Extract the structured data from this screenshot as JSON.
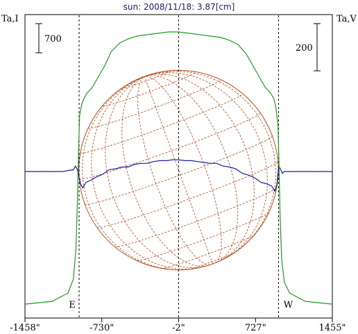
{
  "chart_data": {
    "type": "line",
    "title": "sun: 2008/11/18: 3.87[cm]",
    "left_axis_label": "Ta,I",
    "right_axis_label": "Ta,V",
    "left_scale_bar": "700",
    "right_scale_bar": "200",
    "x_tick_labels": [
      "-1458\"",
      "-730\"",
      "-2\"",
      "727\"",
      "1455\""
    ],
    "x_ticks": [
      -1458,
      -730,
      -2,
      727,
      1455
    ],
    "xlim": [
      -1458,
      1455
    ],
    "limb_markers": {
      "east": "E",
      "west": "W",
      "east_x": -945,
      "west_x": 945
    },
    "center_line_x": -2,
    "grid": false,
    "series": [
      {
        "name": "Ta,I",
        "color": "#1f9a1f",
        "x": [
          -1458,
          -1200,
          -1050,
          -1000,
          -975,
          -960,
          -950,
          -940,
          -920,
          -900,
          -870,
          -820,
          -760,
          -700,
          -640,
          -560,
          -480,
          -400,
          -300,
          -200,
          -100,
          0,
          100,
          200,
          300,
          400,
          480,
          560,
          640,
          700,
          760,
          820,
          870,
          900,
          920,
          940,
          950,
          960,
          975,
          1000,
          1050,
          1200,
          1455
        ],
        "y": [
          0.02,
          0.03,
          0.06,
          0.11,
          0.22,
          0.4,
          0.58,
          0.7,
          0.74,
          0.76,
          0.78,
          0.8,
          0.84,
          0.88,
          0.93,
          0.96,
          0.975,
          0.985,
          0.99,
          0.995,
          1.0,
          1.0,
          0.995,
          0.99,
          0.985,
          0.98,
          0.97,
          0.955,
          0.92,
          0.88,
          0.84,
          0.8,
          0.78,
          0.76,
          0.73,
          0.66,
          0.52,
          0.34,
          0.18,
          0.1,
          0.06,
          0.03,
          0.02
        ]
      },
      {
        "name": "Ta,V",
        "color": "#1a1aa0",
        "x": [
          -1458,
          -1100,
          -1000,
          -980,
          -960,
          -945,
          -930,
          -910,
          -880,
          -840,
          -780,
          -720,
          -660,
          -600,
          -540,
          -480,
          -420,
          -360,
          -300,
          -240,
          -180,
          -120,
          -60,
          0,
          60,
          120,
          180,
          240,
          300,
          360,
          420,
          480,
          540,
          600,
          660,
          720,
          780,
          840,
          880,
          910,
          930,
          945,
          960,
          980,
          1000,
          1100,
          1455
        ],
        "y": [
          0,
          0,
          0.02,
          0.06,
          0.02,
          -0.06,
          -0.14,
          -0.18,
          -0.12,
          -0.1,
          -0.06,
          -0.03,
          0.02,
          0.03,
          0.05,
          0.05,
          0.08,
          0.09,
          0.09,
          0.11,
          0.12,
          0.12,
          0.13,
          0.13,
          0.12,
          0.12,
          0.11,
          0.1,
          0.09,
          0.09,
          0.06,
          0.05,
          0.03,
          -0.02,
          -0.04,
          -0.07,
          -0.12,
          -0.14,
          -0.16,
          -0.22,
          -0.14,
          0.04,
          0.04,
          -0.02,
          0.0,
          0.0,
          0.0
        ]
      }
    ]
  },
  "globe": {
    "color": "#b8562a",
    "radius_arcsec": 945,
    "p_angle_deg": 20,
    "b0_deg": 3
  }
}
